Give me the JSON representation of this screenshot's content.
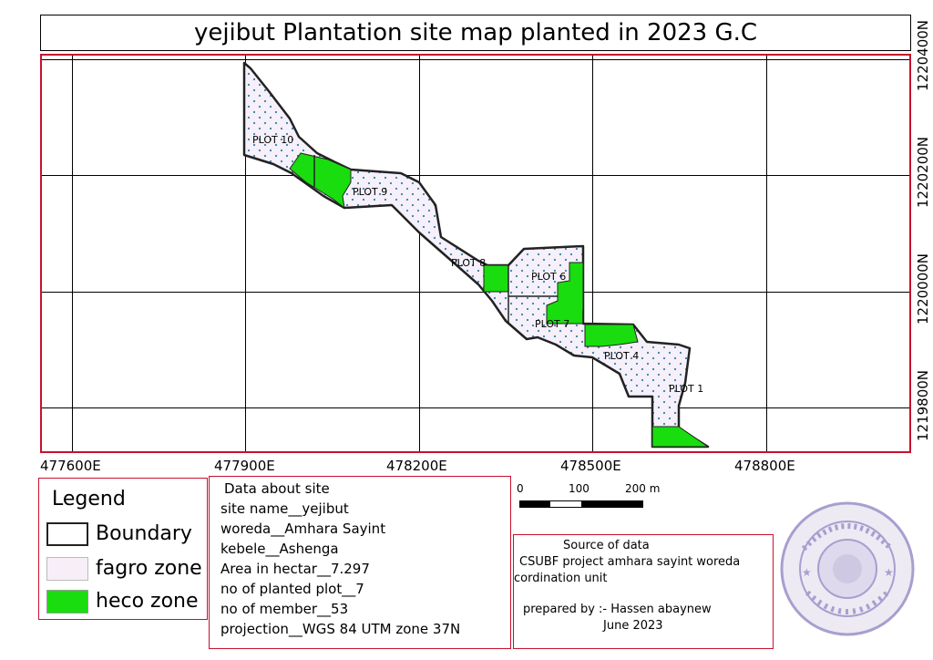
{
  "title": "yejibut Plantation site map planted in 2023 G.C",
  "axes": {
    "x_ticks": [
      "477600E",
      "477900E",
      "478200E",
      "478500E",
      "478800E"
    ],
    "y_ticks": [
      "1220400N",
      "1220200N",
      "1220000N",
      "1219800N"
    ]
  },
  "plots": [
    "PLOT 10",
    "PLOT 9",
    "PLOT 8",
    "PLOT 6",
    "PLOT 7",
    "PLOT 4",
    "PLOT 1"
  ],
  "colors": {
    "boundary": "#222222",
    "fagro": "#f5f0fa",
    "fagro_dot": "#3b7fa6",
    "heco": "#19dd0e",
    "frame": "#c8102e",
    "stamp": "#8a7fc0"
  },
  "legend": {
    "title": "Legend",
    "items": [
      "Boundary",
      "fagro zone",
      "heco zone"
    ]
  },
  "info": {
    "title": "Data about site",
    "lines": [
      "site name__yejibut",
      "woreda__Amhara Sayint",
      "kebele__Ashenga",
      "Area in hectar__7.297",
      "no of planted plot__7",
      "no of member__53",
      "projection__WGS 84 UTM zone 37N"
    ]
  },
  "scale": {
    "labels": [
      "0",
      "100",
      "200 m"
    ]
  },
  "source": {
    "heading": "Source of data",
    "line1": "CSUBF project amhara sayint woreda",
    "line2": "cordination unit",
    "prepared": "prepared by :- Hassen abaynew",
    "date": "June 2023"
  }
}
